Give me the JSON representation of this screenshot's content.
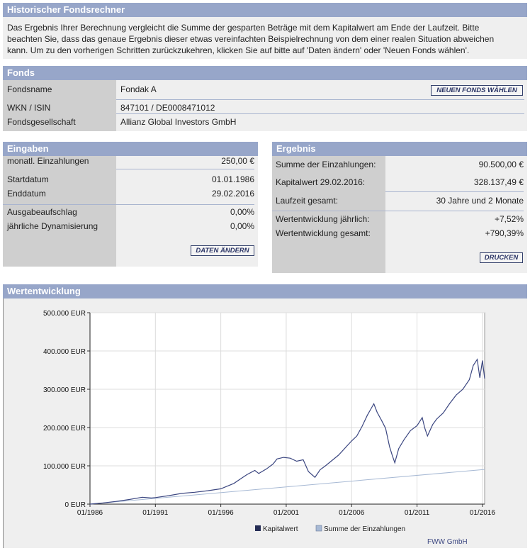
{
  "header": {
    "title": "Historischer Fondsrechner"
  },
  "intro": {
    "line1": "Das Ergebnis Ihrer Berechnung vergleicht die Summe der gesparten Beträge mit dem Kapitalwert am Ende der Laufzeit. Bitte",
    "line2": "beachten Sie, dass das genaue Ergebnis dieser etwas vereinfachten Beispielrechnung von dem einer realen Situation abweichen",
    "line3": "kann. Um zu den vorherigen Schritten zurückzukehren, klicken Sie auf bitte auf 'Daten ändern' oder 'Neuen Fonds wählen'."
  },
  "fonds": {
    "title": "Fonds",
    "name_label": "Fondsname",
    "name_value": "Fondak A",
    "new_fund_button": "NEUEN FONDS WÄHLEN",
    "wkn_label": "WKN / ISIN",
    "wkn_value": "847101 / DE0008471012",
    "company_label": "Fondsgesellschaft",
    "company_value": "Allianz Global Investors GmbH"
  },
  "eingaben": {
    "title": "Eingaben",
    "monthly_label": "monatl. Einzahlungen",
    "monthly_value": "250,00 €",
    "start_label": "Startdatum",
    "start_value": "01.01.1986",
    "end_label": "Enddatum",
    "end_value": "29.02.2016",
    "fee_label": "Ausgabeaufschlag",
    "fee_value": "0,00%",
    "dyn_label": "jährliche Dynamisierung",
    "dyn_value": "0,00%",
    "change_button": "DATEN ÄNDERN"
  },
  "ergebnis": {
    "title": "Ergebnis",
    "sum_label": "Summe der Einzahlungen:",
    "sum_value": "90.500,00 €",
    "capital_label": "Kapitalwert 29.02.2016:",
    "capital_value": "328.137,49 €",
    "duration_label": "Laufzeit gesamt:",
    "duration_value": "30 Jahre und 2 Monate",
    "yearly_label": "Wertentwicklung jährlich:",
    "yearly_value": "+7,52%",
    "total_label": "Wertentwicklung gesamt:",
    "total_value": "+790,39%",
    "print_button": "DRUCKEN"
  },
  "chart_section": {
    "title": "Wertentwicklung",
    "source": "FWW GmbH"
  },
  "chart_data": {
    "type": "line",
    "y_ticks": [
      "500.000 EUR",
      "400.000 EUR",
      "300.000 EUR",
      "200.000 EUR",
      "100.000 EUR",
      "0 EUR"
    ],
    "x_ticks": [
      "01/1986",
      "01/1991",
      "01/1996",
      "01/2001",
      "01/2006",
      "01/2011",
      "01/2016"
    ],
    "ylim": [
      0,
      500000
    ],
    "xlim": [
      1986.0,
      2016.17
    ],
    "legend_position": "bottom",
    "series": [
      {
        "name": "Kapitalwert",
        "color": "#3b4680",
        "x": [
          1986.0,
          1987.0,
          1988.0,
          1989.0,
          1990.0,
          1990.7,
          1991.0,
          1992.0,
          1993.0,
          1994.0,
          1995.0,
          1996.0,
          1997.0,
          1997.6,
          1998.0,
          1998.6,
          1998.9,
          1999.5,
          2000.0,
          2000.3,
          2000.8,
          2001.3,
          2001.8,
          2002.3,
          2002.7,
          2003.2,
          2003.6,
          2004.0,
          2005.0,
          2006.0,
          2006.4,
          2006.8,
          2007.2,
          2007.5,
          2007.7,
          2007.95,
          2008.3,
          2008.6,
          2008.9,
          2009.1,
          2009.3,
          2009.6,
          2010.0,
          2010.5,
          2011.0,
          2011.4,
          2011.6,
          2011.8,
          2012.2,
          2012.5,
          2013.0,
          2013.5,
          2014.0,
          2014.5,
          2015.0,
          2015.3,
          2015.6,
          2015.8,
          2016.0,
          2016.17
        ],
        "y": [
          0,
          3000,
          7000,
          12000,
          18000,
          16000,
          17000,
          22000,
          28000,
          31000,
          35000,
          40000,
          54000,
          68000,
          77000,
          88000,
          80000,
          92000,
          105000,
          118000,
          122000,
          120000,
          112000,
          116000,
          85000,
          70000,
          90000,
          100000,
          128000,
          165000,
          178000,
          203000,
          232000,
          250000,
          262000,
          240000,
          218000,
          198000,
          150000,
          128000,
          108000,
          145000,
          168000,
          192000,
          205000,
          226000,
          198000,
          178000,
          208000,
          222000,
          238000,
          263000,
          285000,
          300000,
          325000,
          362000,
          378000,
          330000,
          375000,
          328000
        ]
      },
      {
        "name": "Summe der Einzahlungen",
        "color": "#a7b9d4",
        "x": [
          1986.0,
          2016.17
        ],
        "y": [
          0,
          90500
        ]
      }
    ]
  }
}
